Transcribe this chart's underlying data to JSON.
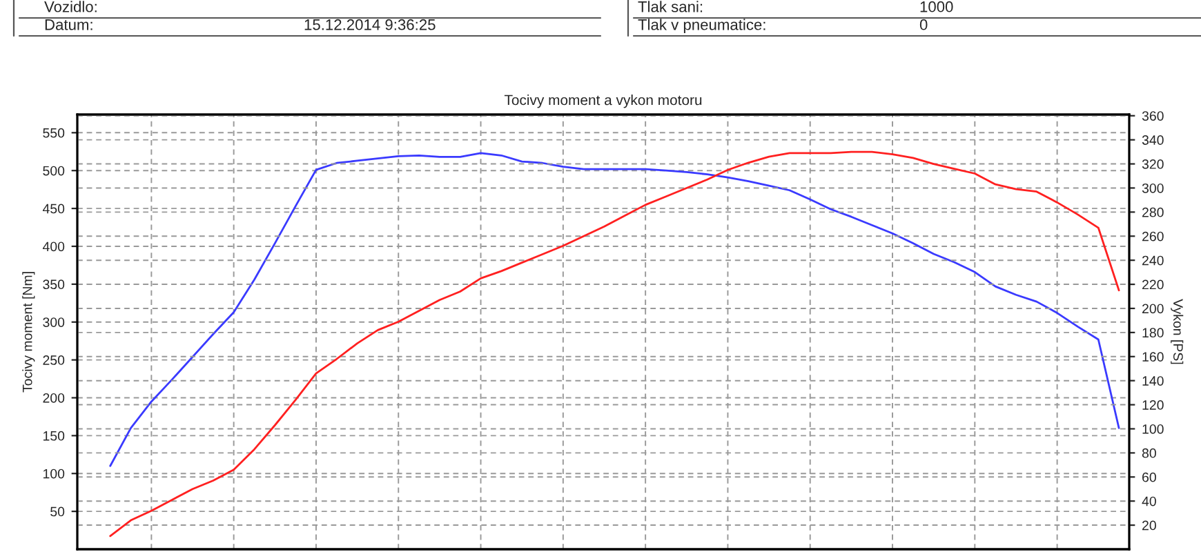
{
  "chart_data": {
    "type": "line",
    "title": "Tocivy moment a vykon motoru",
    "ylabel": "Tocivy moment [Nm]",
    "y2label": "Vykon [PS]",
    "annotations": [
      "Vozidlo:",
      "Datum:",
      "15.12.2014 9:36:25",
      "Tlak sani:",
      "1000",
      "Tlak v pneumatice:",
      "0"
    ],
    "categories": [
      null,
      null,
      null,
      null,
      null,
      null,
      null,
      null,
      null,
      null,
      null,
      null,
      null,
      null,
      null,
      null,
      null,
      null,
      null,
      null,
      null,
      null,
      null,
      null,
      null,
      null,
      null,
      null,
      null,
      null,
      null,
      null,
      null,
      null,
      null,
      null,
      null,
      null,
      null,
      null,
      null,
      null,
      null,
      null,
      null,
      null,
      null,
      null,
      null,
      null
    ],
    "ylim": [
      0,
      574
    ],
    "yticks": [
      50,
      100,
      150,
      200,
      250,
      300,
      350,
      400,
      450,
      500,
      550
    ],
    "y2lim": [
      0,
      361
    ],
    "y2ticks": [
      20,
      40,
      60,
      80,
      100,
      120,
      140,
      160,
      180,
      200,
      220,
      240,
      260,
      280,
      300,
      320,
      340,
      360
    ],
    "grid": true,
    "legend": false,
    "line_style": "solid",
    "series": [
      {
        "color": "#3a3aff",
        "values": [
          110,
          160,
          195,
          224,
          254,
          284,
          313,
          356,
          404,
          453,
          501,
          510,
          513,
          516,
          519,
          520,
          518,
          518,
          523,
          520,
          512,
          510,
          505,
          502,
          502,
          502,
          502,
          500,
          498,
          495,
          491,
          486,
          480,
          474,
          462,
          449,
          439,
          428,
          417,
          404,
          390,
          379,
          366,
          347,
          336,
          327,
          312,
          294,
          277,
          160
        ]
      },
      {
        "color": "#ff2020",
        "axis": "y2",
        "values": [
          11,
          24,
          32,
          41,
          50,
          57,
          66,
          83,
          103,
          124,
          146,
          158,
          171,
          182,
          189,
          198,
          207,
          214,
          225,
          231,
          238,
          245,
          252,
          260,
          268,
          277,
          286,
          293,
          300,
          307,
          315,
          321,
          326,
          329,
          329,
          329,
          330,
          330,
          328,
          325,
          320,
          316,
          312,
          303,
          299,
          297,
          288,
          278,
          267,
          215
        ]
      }
    ]
  }
}
